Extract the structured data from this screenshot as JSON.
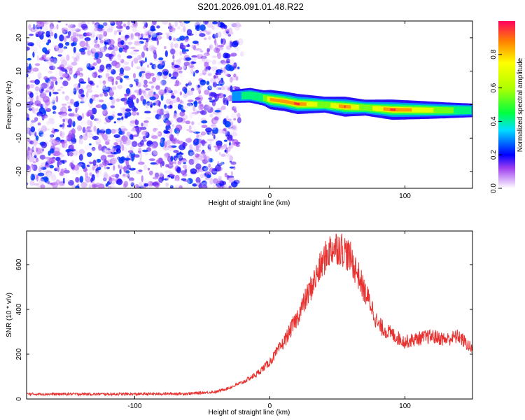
{
  "title": "S201.2026.091.01.48.R22",
  "colors": {
    "snr_line": "#e8312f",
    "axis": "#000000",
    "background": "#ffffff"
  },
  "chart_data": [
    {
      "type": "heatmap",
      "name": "spectrogram",
      "xlabel": "Height of straight line (km)",
      "ylabel": "Frequency (Hz)",
      "xlim": [
        -180,
        150
      ],
      "ylim": [
        -25,
        25
      ],
      "x_ticks": [
        -100,
        0,
        100
      ],
      "y_ticks": [
        20,
        10,
        0,
        -10,
        -20
      ],
      "x_tick_labels": [
        "-100",
        "0",
        "100"
      ],
      "y_tick_labels": [
        "20",
        "10",
        "0",
        "-10",
        "-20"
      ],
      "noise_region": {
        "x_range": [
          -180,
          -25
        ],
        "y_range": [
          -25,
          25
        ],
        "amplitude_range": [
          0.0,
          0.25
        ]
      },
      "ridge": [
        {
          "x": -28,
          "y": 2.5,
          "amp": 0.35
        },
        {
          "x": -15,
          "y": 2.8,
          "amp": 0.5
        },
        {
          "x": -5,
          "y": 2.0,
          "amp": 0.55
        },
        {
          "x": 0,
          "y": 1.5,
          "amp": 0.9
        },
        {
          "x": 10,
          "y": 1.0,
          "amp": 0.9
        },
        {
          "x": 20,
          "y": 0.2,
          "amp": 0.97
        },
        {
          "x": 40,
          "y": 0.0,
          "amp": 0.6
        },
        {
          "x": 55,
          "y": -0.6,
          "amp": 0.95
        },
        {
          "x": 70,
          "y": -0.9,
          "amp": 0.6
        },
        {
          "x": 90,
          "y": -1.5,
          "amp": 0.97
        },
        {
          "x": 110,
          "y": -1.6,
          "amp": 0.8
        },
        {
          "x": 130,
          "y": -1.7,
          "amp": 0.6
        },
        {
          "x": 150,
          "y": -1.7,
          "amp": 0.4
        }
      ],
      "colorbar": {
        "label": "Normalized spectral amplitude",
        "range": [
          0.0,
          1.0
        ],
        "ticks": [
          0.0,
          0.2,
          0.4,
          0.6,
          0.8
        ],
        "tick_labels": [
          "0.0",
          "0.2",
          "0.4",
          "0.6",
          "0.8"
        ]
      }
    },
    {
      "type": "line",
      "name": "snr",
      "xlabel": "Height of straight line (km)",
      "ylabel": "SNR (10 * v/v)",
      "xlim": [
        -180,
        150
      ],
      "ylim": [
        0,
        750
      ],
      "x_ticks": [
        -100,
        0,
        100
      ],
      "y_ticks": [
        0,
        200,
        400,
        600
      ],
      "x_tick_labels": [
        "-100",
        "0",
        "100"
      ],
      "y_tick_labels": [
        "0",
        "200",
        "400",
        "600"
      ],
      "series": [
        {
          "name": "SNR",
          "x": [
            -180,
            -150,
            -100,
            -60,
            -40,
            -30,
            -20,
            -10,
            0,
            10,
            20,
            30,
            40,
            45,
            50,
            55,
            60,
            65,
            70,
            75,
            80,
            90,
            100,
            110,
            120,
            130,
            140,
            150
          ],
          "y": [
            22,
            22,
            22,
            24,
            32,
            50,
            75,
            110,
            165,
            250,
            360,
            490,
            620,
            670,
            680,
            665,
            625,
            560,
            480,
            420,
            330,
            290,
            255,
            270,
            280,
            265,
            280,
            220
          ]
        }
      ]
    }
  ]
}
